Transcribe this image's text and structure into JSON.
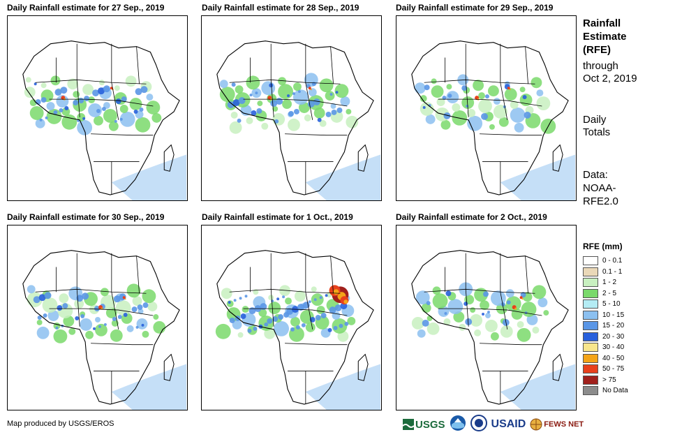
{
  "panels": [
    {
      "title": "Daily Rainfall estimate for 27 Sep., 2019",
      "intensity": 2
    },
    {
      "title": "Daily Rainfall estimate for 28 Sep., 2019",
      "intensity": 2
    },
    {
      "title": "Daily Rainfall estimate for 29 Sep., 2019",
      "intensity": 1
    },
    {
      "title": "Daily Rainfall estimate for 30 Sep., 2019",
      "intensity": 2
    },
    {
      "title": "Daily Rainfall estimate for 1 Oct., 2019",
      "intensity": 3
    },
    {
      "title": "Daily Rainfall estimate for 2 Oct., 2019",
      "intensity": 1
    }
  ],
  "sidebar": {
    "title_line1": "Rainfall",
    "title_line2": "Estimate",
    "title_line3": "(RFE)",
    "through_label": "through",
    "through_date": "Oct 2, 2019",
    "totals_line1": "Daily",
    "totals_line2": "Totals",
    "data_line1": "Data:",
    "data_line2": "NOAA-",
    "data_line3": "RFE2.0"
  },
  "legend": {
    "title": "RFE (mm)",
    "items": [
      {
        "label": "0 - 0.1",
        "color": "#ffffff"
      },
      {
        "label": "0.1 - 1",
        "color": "#ead8b8"
      },
      {
        "label": "1 - 2",
        "color": "#c8f0c0"
      },
      {
        "label": "2 - 5",
        "color": "#7ad96b"
      },
      {
        "label": "5 - 10",
        "color": "#b4ecf4"
      },
      {
        "label": "10 - 15",
        "color": "#8cc0f0"
      },
      {
        "label": "15 - 20",
        "color": "#5a96e6"
      },
      {
        "label": "20 - 30",
        "color": "#2860dc"
      },
      {
        "label": "30 - 40",
        "color": "#f8e68c"
      },
      {
        "label": "40 - 50",
        "color": "#f4a418"
      },
      {
        "label": "50 - 75",
        "color": "#e8401c"
      },
      {
        "label": "> 75",
        "color": "#a0201c"
      },
      {
        "label": "No Data",
        "color": "#8c8c8c"
      }
    ]
  },
  "footer": {
    "credit": "Map produced by USGS/EROS"
  },
  "logos": {
    "usgs": "USGS",
    "usaid": "USAID",
    "fewsnet": "FEWS NET"
  }
}
